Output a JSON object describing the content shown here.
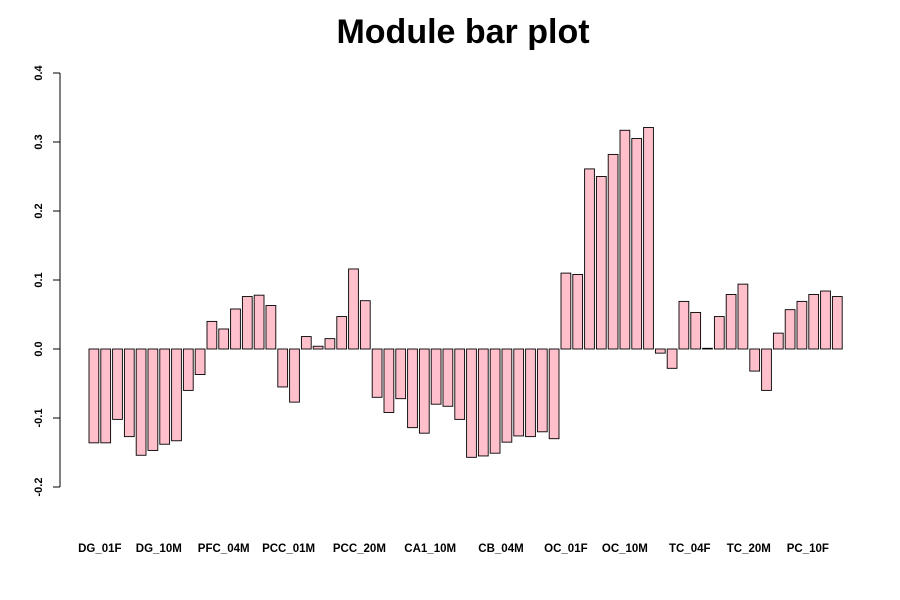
{
  "chart_data": {
    "type": "bar",
    "title": "Module bar plot",
    "xlabel": "",
    "ylabel": "",
    "ylim": [
      -0.2,
      0.4
    ],
    "yticks": [
      -0.2,
      -0.1,
      0.0,
      0.1,
      0.2,
      0.3,
      0.4
    ],
    "ytick_labels": [
      "-0.2",
      "-0.1",
      "0.0",
      "0.1",
      "0.2",
      "0.3",
      "0.4"
    ],
    "bar_color": "#ffc0cb",
    "bar_edge_color": "#000000",
    "grid": false,
    "category_labels": [
      {
        "label": "DG_01F",
        "bar_index": 0.5
      },
      {
        "label": "DG_10M",
        "bar_index": 5.5
      },
      {
        "label": "PFC_04M",
        "bar_index": 11
      },
      {
        "label": "PCC_01M",
        "bar_index": 16.5
      },
      {
        "label": "PCC_20M",
        "bar_index": 22.5
      },
      {
        "label": "CA1_10M",
        "bar_index": 28.5
      },
      {
        "label": "CB_04M",
        "bar_index": 34.5
      },
      {
        "label": "OC_01F",
        "bar_index": 40
      },
      {
        "label": "OC_10M",
        "bar_index": 45
      },
      {
        "label": "TC_04F",
        "bar_index": 50.5
      },
      {
        "label": "TC_20M",
        "bar_index": 55.5
      },
      {
        "label": "PC_10F",
        "bar_index": 60.5
      }
    ],
    "values": [
      -0.136,
      -0.136,
      -0.102,
      -0.127,
      -0.154,
      -0.147,
      -0.138,
      -0.133,
      -0.06,
      -0.037,
      0.04,
      0.029,
      0.058,
      0.076,
      0.078,
      0.063,
      -0.055,
      -0.077,
      0.018,
      0.004,
      0.015,
      0.047,
      0.116,
      0.07,
      -0.07,
      -0.092,
      -0.072,
      -0.114,
      -0.122,
      -0.08,
      -0.083,
      -0.102,
      -0.157,
      -0.155,
      -0.151,
      -0.135,
      -0.126,
      -0.127,
      -0.12,
      -0.13,
      0.11,
      0.108,
      0.261,
      0.25,
      0.282,
      0.317,
      0.305,
      0.321,
      -0.006,
      -0.028,
      0.069,
      0.053,
      0.001,
      0.047,
      0.079,
      0.094,
      -0.032,
      -0.06,
      0.023,
      0.057,
      0.069,
      0.079,
      0.084,
      0.076
    ]
  }
}
